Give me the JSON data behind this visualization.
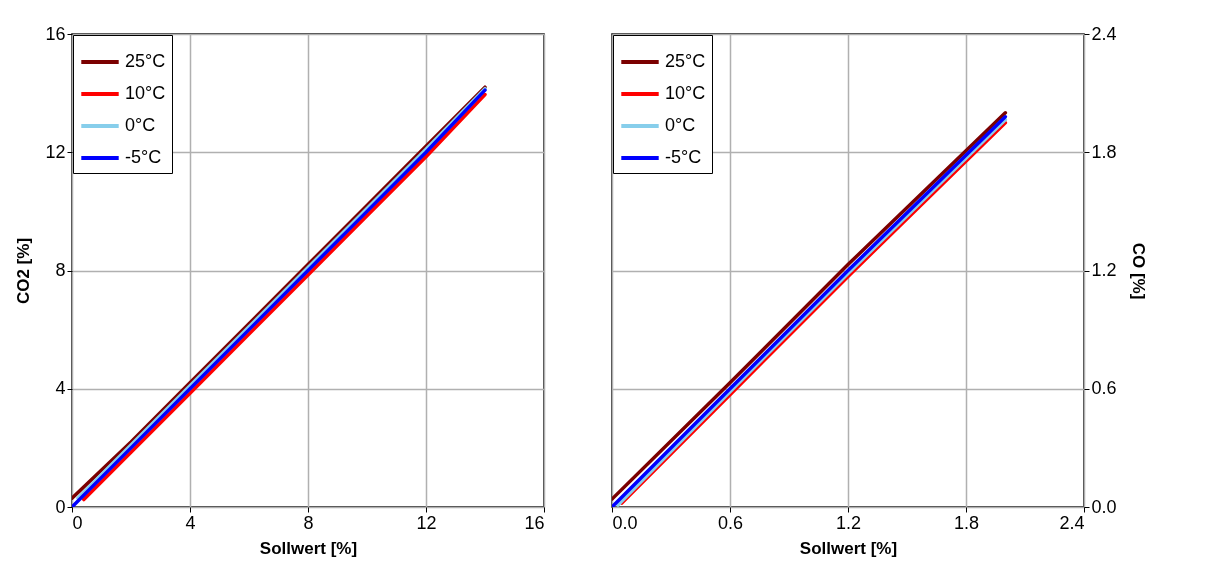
{
  "chart_data": [
    {
      "type": "line",
      "xlabel": "Sollwert [%]",
      "ylabel": "CO2 [%]",
      "xlim": [
        0,
        16
      ],
      "ylim": [
        0,
        16
      ],
      "xticks": [
        0,
        4,
        8,
        12,
        16
      ],
      "yticks": [
        0,
        4,
        8,
        12,
        16
      ],
      "grid": true,
      "legend": "top left",
      "x": [
        0,
        2,
        4,
        6,
        8,
        10,
        12,
        14
      ],
      "series": [
        {
          "name": "25°C",
          "color": "#7b0000",
          "values": [
            0.3,
            2.2,
            4.2,
            6.2,
            8.2,
            10.2,
            12.2,
            14.2
          ]
        },
        {
          "name": "10°C",
          "color": "#ff0000",
          "x": [
            0.4,
            2,
            4,
            6,
            8,
            10,
            12,
            14
          ],
          "values": [
            0.25,
            1.85,
            3.85,
            5.85,
            7.85,
            9.85,
            11.85,
            13.95
          ]
        },
        {
          "name": "0°C",
          "color": "#87ceeb",
          "x": [
            0.2,
            2,
            4,
            6,
            8,
            10,
            12,
            14
          ],
          "values": [
            0.3,
            2.1,
            4.1,
            6.1,
            8.1,
            10.1,
            12.1,
            14.15
          ]
        },
        {
          "name": "-5°C",
          "color": "#0000ff",
          "values": [
            0,
            2,
            4,
            6,
            8,
            10,
            12,
            14.1
          ]
        }
      ]
    },
    {
      "type": "line",
      "xlabel": "Sollwert [%]",
      "y2label": "CO [%]",
      "xlim": [
        0,
        2.4
      ],
      "y2lim": [
        0,
        2.4
      ],
      "xticks": [
        {
          "value": 0,
          "label": "0.0"
        },
        0.6,
        1.2,
        1.8,
        2.4
      ],
      "y2ticks": [
        {
          "value": 0,
          "label": "0.0"
        },
        0.6,
        1.2,
        1.8,
        2.4
      ],
      "grid": true,
      "legend": "top left",
      "x": [
        0,
        0.6,
        1.2,
        2
      ],
      "series": [
        {
          "name": "25°C",
          "color": "#7b0000",
          "axis": "y2",
          "values": [
            0.04,
            0.63,
            1.23,
            2.0
          ]
        },
        {
          "name": "10°C",
          "color": "#ff0000",
          "axis": "y2",
          "x": [
            0.05,
            0.6,
            1.2,
            2
          ],
          "values": [
            0.02,
            0.57,
            1.17,
            1.95
          ]
        },
        {
          "name": "0°C",
          "color": "#87ceeb",
          "axis": "y2",
          "x": [
            0.03,
            0.6,
            1.2,
            2
          ],
          "values": [
            0.01,
            0.585,
            1.185,
            1.965
          ]
        },
        {
          "name": "-5°C",
          "color": "#0000ff",
          "axis": "y2",
          "values": [
            0,
            0.6,
            1.2,
            1.98
          ]
        }
      ]
    }
  ]
}
